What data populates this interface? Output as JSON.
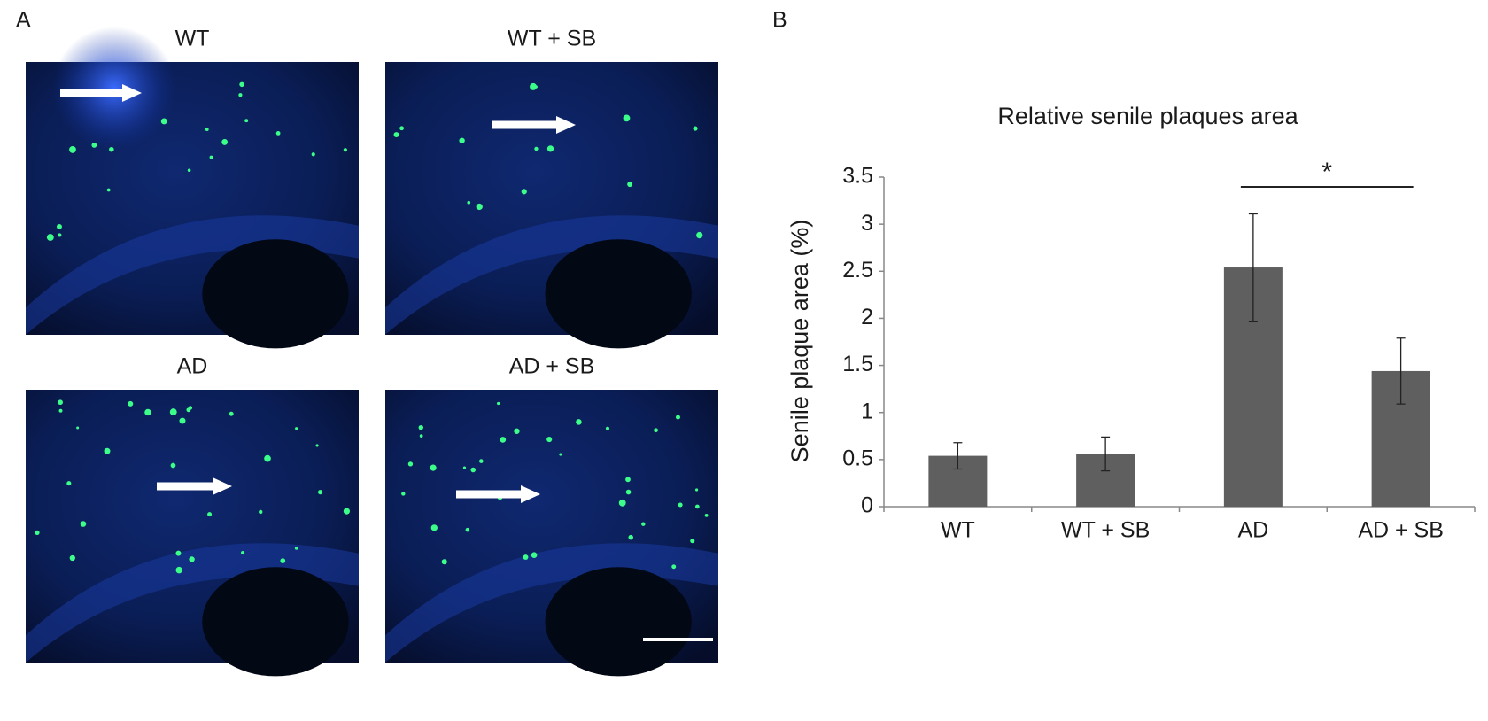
{
  "panel_a": {
    "label": "A",
    "images": [
      {
        "title": "WT"
      },
      {
        "title": "WT + SB"
      },
      {
        "title": "AD"
      },
      {
        "title": "AD + SB"
      }
    ]
  },
  "chart_data": {
    "type": "bar",
    "panel_label": "B",
    "title": "Relative senile plaques area",
    "y_label": "Senile plaque area (%)",
    "categories": [
      "WT",
      "WT + SB",
      "AD",
      "AD + SB"
    ],
    "values": [
      0.54,
      0.56,
      2.54,
      1.44
    ],
    "errors": [
      0.14,
      0.18,
      0.57,
      0.35
    ],
    "color": "#5f5f5f",
    "ylim": [
      0,
      3.5
    ],
    "yticks": [
      0,
      0.5,
      1,
      1.5,
      2,
      2.5,
      3,
      3.5
    ],
    "significance": {
      "from": 2,
      "to": 3,
      "label": "*"
    }
  }
}
